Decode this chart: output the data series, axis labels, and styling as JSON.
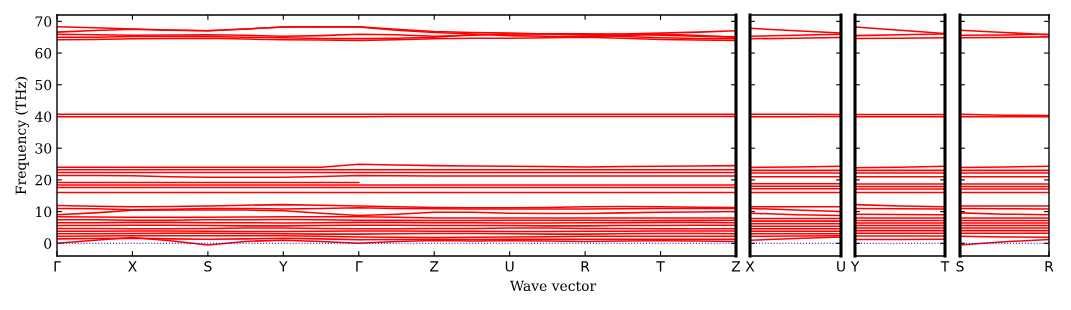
{
  "chart_data": [
    {
      "type": "line",
      "xlabel": "Wave vector",
      "ylabel": "Frequency (THz)",
      "color": "#ff0000",
      "line_style": "solid",
      "marker": "none",
      "categories": [
        "Γ",
        null,
        "X",
        null,
        "S",
        null,
        "Y",
        null,
        "Γ",
        null,
        "Z",
        null,
        "U",
        null,
        "R",
        null,
        "T",
        null,
        "Z"
      ],
      "ylim": [
        -4,
        72
      ],
      "yticks": [
        0,
        10,
        20,
        30,
        40,
        50,
        60,
        70
      ],
      "ref_lines": [
        {
          "axis": "y",
          "value": 0,
          "color": "#0000ff",
          "line_style": "dotted"
        }
      ],
      "series": [
        {
          "values": [
            68.3,
            68.0,
            67.6,
            67.3,
            67.0,
            67.6,
            68.2,
            68.3,
            68.3,
            67.5,
            66.8,
            66.5,
            66.3,
            66.0,
            65.8,
            66.0,
            66.3,
            66.6,
            67.0
          ]
        },
        {
          "values": [
            66.6,
            67.1,
            67.5,
            67.2,
            67.0,
            67.6,
            68.2,
            68.2,
            68.2,
            67.2,
            66.5,
            66.0,
            65.5,
            65.3,
            65.2,
            65.5,
            66.0,
            65.5,
            65.0
          ]
        },
        {
          "values": [
            65.9,
            65.8,
            65.6,
            65.7,
            65.8,
            65.6,
            65.3,
            65.5,
            65.9,
            65.8,
            65.3,
            65.6,
            66.1,
            66.1,
            66.1,
            65.9,
            65.6,
            65.3,
            65.1
          ]
        },
        {
          "values": [
            65.0,
            65.0,
            65.2,
            65.2,
            65.2,
            65.0,
            64.8,
            64.6,
            64.6,
            64.7,
            65.0,
            65.8,
            66.0,
            66.0,
            65.7,
            65.2,
            64.8,
            64.6,
            64.6
          ]
        },
        {
          "values": [
            64.2,
            64.3,
            64.5,
            64.6,
            64.7,
            64.4,
            64.2,
            64.1,
            64.0,
            64.2,
            64.5,
            64.7,
            64.7,
            64.8,
            65.0,
            64.7,
            64.3,
            64.1,
            64.0
          ]
        },
        {
          "values": [
            40.7,
            40.7,
            40.7,
            40.7,
            40.7,
            40.7,
            40.7,
            40.7,
            40.7,
            40.7,
            40.7,
            40.7,
            40.7,
            40.7,
            40.7,
            40.7,
            40.7,
            40.7,
            40.7
          ]
        },
        {
          "values": [
            39.9,
            39.9,
            39.9,
            39.9,
            39.9,
            39.9,
            39.9,
            39.9,
            39.9,
            40.0,
            40.0,
            40.0,
            40.0,
            40.0,
            40.0,
            40.0,
            40.0,
            40.0,
            40.0
          ]
        },
        {
          "values": [
            24.0,
            24.0,
            24.0,
            24.0,
            24.0,
            24.0,
            24.0,
            24.0,
            24.9,
            24.7,
            24.5,
            24.4,
            24.3,
            24.2,
            24.1,
            24.2,
            24.3,
            24.4,
            24.5
          ]
        },
        {
          "values": [
            23.2,
            23.2,
            23.2,
            23.2,
            23.2,
            23.2,
            23.2,
            23.2,
            23.2,
            23.2,
            23.2,
            23.2,
            23.2,
            23.2,
            23.2,
            23.2,
            23.2,
            23.2,
            23.2
          ]
        },
        {
          "values": [
            22.3,
            22.3,
            22.3,
            22.3,
            22.3,
            22.3,
            22.3,
            22.3,
            22.3,
            22.3,
            22.3,
            22.3,
            22.3,
            22.3,
            22.3,
            22.3,
            22.3,
            22.3,
            22.3
          ]
        },
        {
          "values": [
            21.4,
            21.4,
            21.3,
            21.0,
            20.8,
            20.8,
            20.8,
            21.1,
            21.4,
            21.3,
            21.2,
            21.2,
            21.2,
            21.2,
            21.2,
            21.2,
            21.2,
            21.2,
            21.2
          ]
        },
        {
          "values": [
            19.2,
            19.2,
            19.2,
            19.2,
            19.2,
            19.2,
            19.2,
            19.2,
            19.2,
            null,
            null,
            null,
            null,
            null,
            null,
            null,
            null,
            null,
            null
          ]
        },
        {
          "values": [
            18.4,
            18.4,
            18.4,
            18.4,
            18.4,
            18.4,
            18.4,
            18.4,
            18.4,
            18.4,
            18.4,
            18.4,
            18.4,
            18.4,
            18.4,
            18.4,
            18.4,
            18.4,
            18.4
          ]
        },
        {
          "values": [
            17.6,
            17.6,
            17.6,
            17.6,
            17.6,
            17.6,
            17.6,
            17.6,
            17.6,
            17.6,
            17.6,
            17.6,
            17.6,
            17.6,
            17.6,
            17.6,
            17.6,
            17.6,
            17.6
          ]
        },
        {
          "values": [
            16.0,
            16.0,
            16.0,
            16.0,
            16.0,
            16.0,
            16.0,
            16.0,
            16.0,
            16.0,
            16.0,
            16.0,
            16.0,
            16.0,
            16.0,
            16.0,
            16.0,
            16.0,
            16.0
          ]
        },
        {
          "values": [
            11.9,
            11.7,
            11.5,
            11.6,
            11.8,
            12.0,
            12.2,
            12.0,
            11.8,
            11.5,
            11.3,
            11.2,
            11.2,
            11.3,
            11.5,
            11.6,
            11.5,
            11.4,
            11.3
          ]
        },
        {
          "values": [
            11.0,
            10.9,
            10.6,
            10.7,
            11.0,
            11.0,
            10.8,
            11.0,
            11.2,
            11.0,
            10.9,
            10.8,
            10.8,
            10.8,
            10.8,
            10.9,
            11.0,
            11.0,
            11.0
          ]
        },
        {
          "values": [
            9.0,
            9.6,
            10.4,
            10.5,
            10.5,
            10.5,
            10.3,
            9.5,
            8.8,
            9.2,
            9.8,
            9.8,
            9.5,
            9.4,
            9.4,
            9.6,
            9.8,
            9.9,
            10.0
          ]
        },
        {
          "values": [
            8.4,
            8.3,
            8.2,
            8.2,
            8.2,
            8.3,
            8.4,
            8.4,
            8.4,
            8.2,
            8.0,
            8.0,
            8.0,
            8.0,
            8.0,
            8.0,
            8.0,
            8.0,
            8.0
          ]
        },
        {
          "values": [
            7.4,
            7.4,
            7.3,
            7.3,
            7.4,
            7.4,
            7.5,
            7.4,
            7.3,
            7.3,
            7.2,
            7.2,
            7.3,
            7.3,
            7.3,
            7.2,
            7.2,
            7.3,
            7.3
          ]
        },
        {
          "values": [
            6.5,
            6.5,
            6.6,
            6.6,
            6.5,
            6.5,
            6.4,
            6.5,
            6.6,
            6.6,
            6.5,
            6.5,
            6.4,
            6.4,
            6.5,
            6.5,
            6.6,
            6.6,
            6.5
          ]
        },
        {
          "values": [
            5.6,
            5.6,
            5.7,
            5.7,
            5.6,
            5.5,
            5.5,
            5.6,
            5.7,
            5.7,
            5.6,
            5.6,
            5.6,
            5.5,
            5.5,
            5.6,
            5.6,
            5.7,
            5.7
          ]
        },
        {
          "values": [
            4.7,
            4.7,
            4.6,
            4.6,
            4.7,
            4.8,
            4.8,
            4.7,
            4.6,
            4.6,
            4.7,
            4.7,
            4.8,
            4.8,
            4.7,
            4.7,
            4.6,
            4.6,
            4.6
          ]
        },
        {
          "values": [
            3.8,
            3.8,
            3.9,
            3.9,
            3.8,
            3.7,
            3.7,
            3.8,
            3.9,
            3.9,
            3.8,
            3.8,
            3.7,
            3.7,
            3.8,
            3.8,
            3.9,
            3.9,
            3.9
          ]
        },
        {
          "values": [
            3.0,
            3.0,
            3.1,
            3.2,
            3.2,
            3.1,
            3.0,
            2.9,
            2.9,
            3.0,
            3.1,
            3.1,
            3.0,
            2.9,
            2.9,
            3.0,
            3.1,
            3.1,
            3.0
          ]
        },
        {
          "values": [
            2.2,
            2.3,
            2.4,
            2.4,
            2.4,
            2.4,
            2.4,
            2.2,
            2.0,
            1.9,
            1.8,
            1.9,
            2.0,
            2.1,
            2.2,
            2.2,
            2.2,
            2.2,
            2.2
          ]
        },
        {
          "values": [
            1.4,
            1.5,
            1.6,
            1.4,
            1.3,
            1.4,
            1.6,
            1.4,
            1.1,
            1.2,
            1.3,
            1.2,
            1.3,
            1.3,
            1.3,
            1.3,
            1.3,
            1.3,
            1.3
          ]
        },
        {
          "values": [
            0.0,
            1.0,
            1.8,
            0.8,
            -0.5,
            0.6,
            1.0,
            0.6,
            0.0,
            0.6,
            0.9,
            0.7,
            0.8,
            0.7,
            0.6,
            0.7,
            0.8,
            0.7,
            0.6
          ]
        }
      ]
    },
    {
      "type": "line",
      "color": "#ff0000",
      "line_style": "solid",
      "marker": "none",
      "tick_labels": "x",
      "categories": [
        "X",
        null,
        "U"
      ],
      "ylim": [
        -4,
        72
      ],
      "yticks": [
        0,
        10,
        20,
        30,
        40,
        50,
        60,
        70
      ],
      "ref_lines": [
        {
          "axis": "y",
          "value": 0,
          "color": "#0000ff",
          "line_style": "dotted"
        }
      ],
      "series": [
        {
          "values": [
            67.8,
            67.0,
            66.3
          ]
        },
        {
          "values": [
            65.3,
            65.6,
            65.9
          ]
        },
        {
          "values": [
            64.5,
            64.7,
            64.9
          ]
        },
        {
          "values": [
            40.7,
            40.7,
            40.6
          ]
        },
        {
          "values": [
            39.9,
            39.9,
            40.0
          ]
        },
        {
          "values": [
            23.9,
            24.1,
            24.3
          ]
        },
        {
          "values": [
            23.0,
            23.0,
            23.0
          ]
        },
        {
          "values": [
            22.2,
            22.2,
            22.2
          ]
        },
        {
          "values": [
            21.0,
            21.0,
            21.0
          ]
        },
        {
          "values": [
            18.8,
            18.8,
            18.8
          ]
        },
        {
          "values": [
            18.0,
            18.0,
            18.0
          ]
        },
        {
          "values": [
            17.2,
            17.2,
            17.2
          ]
        },
        {
          "values": [
            16.0,
            16.0,
            16.0
          ]
        },
        {
          "values": [
            11.5,
            11.5,
            11.5
          ]
        },
        {
          "values": [
            11.0,
            10.5,
            10.0
          ]
        },
        {
          "values": [
            9.5,
            9.0,
            8.8
          ]
        },
        {
          "values": [
            7.8,
            7.8,
            7.8
          ]
        },
        {
          "values": [
            7.0,
            7.0,
            7.0
          ]
        },
        {
          "values": [
            6.2,
            6.2,
            6.2
          ]
        },
        {
          "values": [
            5.4,
            5.4,
            5.4
          ]
        },
        {
          "values": [
            4.6,
            4.6,
            4.6
          ]
        },
        {
          "values": [
            3.8,
            3.8,
            3.8
          ]
        },
        {
          "values": [
            3.0,
            3.0,
            3.0
          ]
        },
        {
          "values": [
            2.2,
            2.3,
            2.4
          ]
        },
        {
          "values": [
            1.0,
            1.5,
            2.0
          ]
        }
      ]
    },
    {
      "type": "line",
      "color": "#ff0000",
      "line_style": "solid",
      "marker": "none",
      "tick_labels": "x",
      "categories": [
        "Y",
        null,
        "T"
      ],
      "ylim": [
        -4,
        72
      ],
      "yticks": [
        0,
        10,
        20,
        30,
        40,
        50,
        60,
        70
      ],
      "ref_lines": [
        {
          "axis": "y",
          "value": 0,
          "color": "#0000ff",
          "line_style": "dotted"
        }
      ],
      "series": [
        {
          "values": [
            68.2,
            67.2,
            66.2
          ]
        },
        {
          "values": [
            65.5,
            65.8,
            66.0
          ]
        },
        {
          "values": [
            64.6,
            64.7,
            64.8
          ]
        },
        {
          "values": [
            40.6,
            40.6,
            40.6
          ]
        },
        {
          "values": [
            39.9,
            39.9,
            39.9
          ]
        },
        {
          "values": [
            23.8,
            24.0,
            24.3
          ]
        },
        {
          "values": [
            23.0,
            23.0,
            23.0
          ]
        },
        {
          "values": [
            22.2,
            22.2,
            22.2
          ]
        },
        {
          "values": [
            21.0,
            21.0,
            21.0
          ]
        },
        {
          "values": [
            18.7,
            18.7,
            18.7
          ]
        },
        {
          "values": [
            17.9,
            17.9,
            17.9
          ]
        },
        {
          "values": [
            17.1,
            17.1,
            17.1
          ]
        },
        {
          "values": [
            16.0,
            16.0,
            16.0
          ]
        },
        {
          "values": [
            12.2,
            11.8,
            11.5
          ]
        },
        {
          "values": [
            11.0,
            10.9,
            10.8
          ]
        },
        {
          "values": [
            9.2,
            9.1,
            9.0
          ]
        },
        {
          "values": [
            8.0,
            8.0,
            8.0
          ]
        },
        {
          "values": [
            7.2,
            7.2,
            7.2
          ]
        },
        {
          "values": [
            6.4,
            6.4,
            6.4
          ]
        },
        {
          "values": [
            5.6,
            5.6,
            5.6
          ]
        },
        {
          "values": [
            4.8,
            4.8,
            4.8
          ]
        },
        {
          "values": [
            4.0,
            4.0,
            4.0
          ]
        },
        {
          "values": [
            3.2,
            3.2,
            3.2
          ]
        },
        {
          "values": [
            2.3,
            2.3,
            2.3
          ]
        },
        {
          "values": [
            1.2,
            1.2,
            1.3
          ]
        }
      ]
    },
    {
      "type": "line",
      "color": "#ff0000",
      "line_style": "solid",
      "marker": "none",
      "tick_labels": "x",
      "categories": [
        "S",
        null,
        "R"
      ],
      "ylim": [
        -4,
        72
      ],
      "yticks": [
        0,
        10,
        20,
        30,
        40,
        50,
        60,
        70
      ],
      "ref_lines": [
        {
          "axis": "y",
          "value": 0,
          "color": "#0000ff",
          "line_style": "dotted"
        }
      ],
      "series": [
        {
          "values": [
            67.2,
            66.5,
            65.8
          ]
        },
        {
          "values": [
            65.6,
            65.7,
            65.9
          ]
        },
        {
          "values": [
            64.8,
            64.9,
            65.1
          ]
        },
        {
          "values": [
            40.7,
            40.4,
            40.3
          ]
        },
        {
          "values": [
            39.9,
            39.9,
            39.9
          ]
        },
        {
          "values": [
            23.9,
            24.1,
            24.3
          ]
        },
        {
          "values": [
            23.0,
            23.0,
            23.0
          ]
        },
        {
          "values": [
            22.2,
            22.2,
            22.2
          ]
        },
        {
          "values": [
            21.0,
            21.0,
            21.0
          ]
        },
        {
          "values": [
            18.7,
            18.7,
            18.7
          ]
        },
        {
          "values": [
            17.9,
            17.9,
            17.9
          ]
        },
        {
          "values": [
            17.1,
            17.1,
            17.1
          ]
        },
        {
          "values": [
            16.0,
            16.0,
            16.0
          ]
        },
        {
          "values": [
            11.8,
            11.8,
            11.8
          ]
        },
        {
          "values": [
            11.0,
            10.9,
            10.8
          ]
        },
        {
          "values": [
            9.6,
            9.2,
            9.0
          ]
        },
        {
          "values": [
            8.0,
            8.0,
            8.0
          ]
        },
        {
          "values": [
            7.2,
            7.2,
            7.2
          ]
        },
        {
          "values": [
            6.4,
            6.4,
            6.4
          ]
        },
        {
          "values": [
            5.6,
            5.6,
            5.6
          ]
        },
        {
          "values": [
            4.8,
            4.8,
            4.8
          ]
        },
        {
          "values": [
            4.0,
            4.0,
            4.0
          ]
        },
        {
          "values": [
            3.2,
            3.2,
            3.2
          ]
        },
        {
          "values": [
            2.2,
            2.0,
            1.9
          ]
        },
        {
          "values": [
            -0.5,
            0.5,
            1.2
          ]
        }
      ]
    }
  ]
}
